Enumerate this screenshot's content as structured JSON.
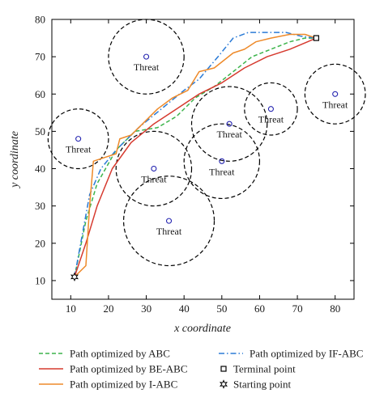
{
  "chart_data": {
    "type": "line",
    "xlabel": "x coordinate",
    "ylabel": "y coordinate",
    "xlim": [
      5,
      85
    ],
    "ylim": [
      5,
      80
    ],
    "xticks": [
      10,
      20,
      30,
      40,
      50,
      60,
      70,
      80
    ],
    "yticks": [
      10,
      20,
      30,
      40,
      50,
      60,
      70,
      80
    ],
    "grid": false,
    "legend_position": "bottom",
    "threats": [
      {
        "label": "Threat",
        "center": [
          30,
          70
        ],
        "radius": 10
      },
      {
        "label": "Threat",
        "center": [
          12,
          48
        ],
        "radius": 8
      },
      {
        "label": "Threat",
        "center": [
          32,
          40
        ],
        "radius": 10
      },
      {
        "label": "Threat",
        "center": [
          36,
          26
        ],
        "radius": 12
      },
      {
        "label": "Threat",
        "center": [
          50,
          42
        ],
        "radius": 10
      },
      {
        "label": "Threat",
        "center": [
          52,
          52
        ],
        "radius": 10
      },
      {
        "label": "Threat",
        "center": [
          63,
          56
        ],
        "radius": 7
      },
      {
        "label": "Threat",
        "center": [
          80,
          60
        ],
        "radius": 8
      }
    ],
    "series": [
      {
        "name": "Path optimized by ABC",
        "style": "dashed",
        "color": "#3cb44b",
        "x": [
          11,
          14,
          17,
          22,
          27,
          33,
          38,
          43,
          48,
          53,
          58,
          63,
          68,
          72,
          75
        ],
        "y": [
          11,
          26,
          36,
          45,
          50,
          51,
          54,
          59,
          62,
          66,
          70,
          72,
          74,
          75,
          75
        ]
      },
      {
        "name": "Path optimized by IF-ABC",
        "style": "dashdot",
        "color": "#2b7bd6",
        "x": [
          11,
          13,
          15,
          18,
          22,
          28,
          34,
          40,
          44,
          49,
          53,
          57,
          62,
          67,
          71,
          75
        ],
        "y": [
          11,
          22,
          33,
          40,
          45,
          51,
          56,
          61,
          64,
          70,
          75,
          76.5,
          76.5,
          76.5,
          75.5,
          75
        ]
      },
      {
        "name": "Path optimized by BE-ABC",
        "style": "solid",
        "color": "#d63a2f",
        "x": [
          11,
          14,
          17,
          21,
          26,
          32,
          38,
          44,
          50,
          56,
          62,
          68,
          75
        ],
        "y": [
          11,
          20,
          30,
          40,
          47,
          52,
          56,
          60,
          63,
          67,
          70,
          72,
          75
        ]
      },
      {
        "name": "Path optimized by I-ABC",
        "style": "solid",
        "color": "#ee8a2a",
        "x": [
          11,
          14,
          15,
          16,
          19,
          22,
          23,
          26,
          29,
          33,
          37,
          41,
          44,
          48,
          53,
          56,
          59,
          63,
          68,
          72,
          75
        ],
        "y": [
          11,
          14,
          30,
          42,
          43,
          44,
          48,
          49,
          52,
          56,
          59,
          61,
          66,
          67,
          71,
          72,
          74,
          75,
          76,
          76,
          75
        ]
      }
    ],
    "markers": [
      {
        "name": "Terminal point",
        "shape": "square",
        "x": 75,
        "y": 75
      },
      {
        "name": "Starting point",
        "shape": "star",
        "x": 11,
        "y": 11
      }
    ]
  }
}
